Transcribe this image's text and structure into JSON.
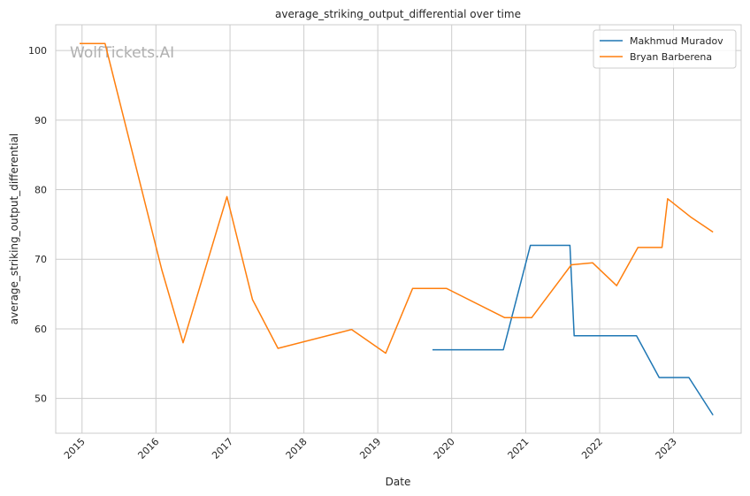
{
  "watermark": "WolfTickets.AI",
  "chart_data": {
    "type": "line",
    "title": "average_striking_output_differential over time",
    "xlabel": "Date",
    "ylabel": "average_striking_output_differential",
    "x_ticks": [
      "2015",
      "2016",
      "2017",
      "2018",
      "2019",
      "2020",
      "2021",
      "2022",
      "2023"
    ],
    "y_ticks": [
      50,
      60,
      70,
      80,
      90,
      100
    ],
    "xlim": [
      "2014-08-24",
      "2023-12-01"
    ],
    "ylim": [
      45,
      103.7
    ],
    "grid": true,
    "legend_position": "top-right",
    "series": [
      {
        "name": "Makhmud Muradov",
        "color": "#1f77b4",
        "points": [
          [
            "2019-09-28",
            57.0
          ],
          [
            "2020-09-12",
            57.0
          ],
          [
            "2021-01-24",
            72.0
          ],
          [
            "2021-08-07",
            72.0
          ],
          [
            "2021-08-28",
            59.0
          ],
          [
            "2022-07-02",
            59.0
          ],
          [
            "2022-10-22",
            53.0
          ],
          [
            "2023-03-18",
            53.0
          ],
          [
            "2023-07-15",
            47.6
          ]
        ]
      },
      {
        "name": "Bryan Barberena",
        "color": "#ff7f0e",
        "points": [
          [
            "2014-12-20",
            101.0
          ],
          [
            "2015-04-25",
            101.0
          ],
          [
            "2016-01-30",
            68.5
          ],
          [
            "2016-05-14",
            58.0
          ],
          [
            "2016-12-17",
            79.0
          ],
          [
            "2017-04-22",
            64.2
          ],
          [
            "2017-08-26",
            57.2
          ],
          [
            "2018-08-25",
            59.9
          ],
          [
            "2019-02-09",
            56.5
          ],
          [
            "2019-06-22",
            65.8
          ],
          [
            "2019-12-07",
            65.8
          ],
          [
            "2020-09-19",
            61.6
          ],
          [
            "2021-01-30",
            61.6
          ],
          [
            "2021-08-14",
            69.2
          ],
          [
            "2021-11-27",
            69.5
          ],
          [
            "2022-03-26",
            66.2
          ],
          [
            "2022-07-09",
            71.7
          ],
          [
            "2022-11-05",
            71.7
          ],
          [
            "2022-12-03",
            78.7
          ],
          [
            "2023-03-25",
            76.1
          ],
          [
            "2023-07-15",
            73.9
          ]
        ]
      }
    ]
  }
}
